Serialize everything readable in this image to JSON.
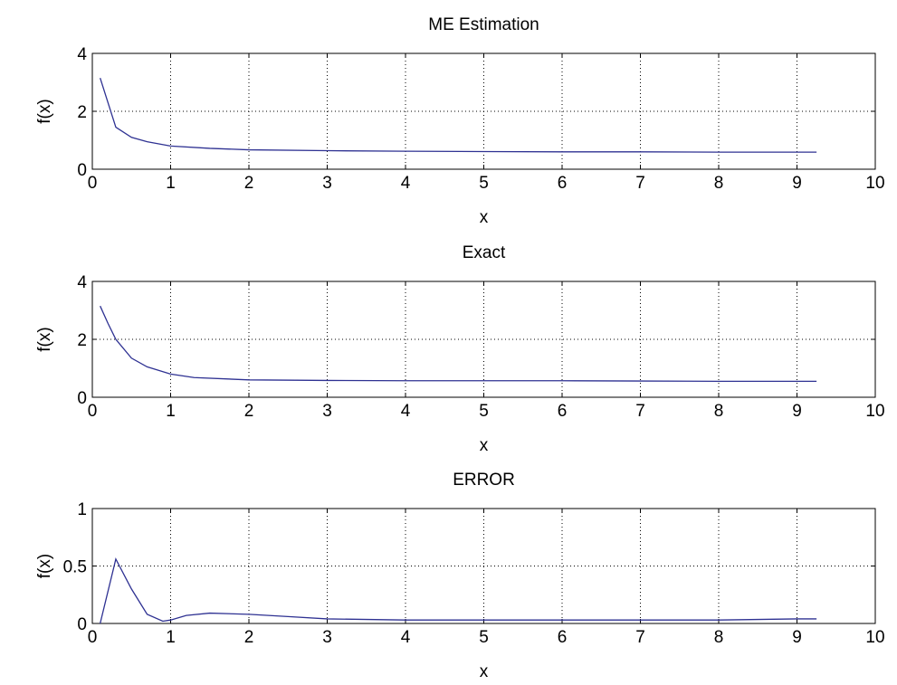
{
  "chart_data": [
    {
      "type": "line",
      "title": "ME Estimation",
      "xlabel": "x",
      "ylabel": "f(x)",
      "xlim": [
        0,
        10
      ],
      "ylim": [
        0,
        4
      ],
      "xticks": [
        0,
        1,
        2,
        3,
        4,
        5,
        6,
        7,
        8,
        9,
        10
      ],
      "yticks": [
        0,
        2,
        4
      ],
      "xtick_labels": [
        "0",
        "1",
        "2",
        "3",
        "4",
        "5",
        "6",
        "7",
        "8",
        "9",
        "10"
      ],
      "ytick_labels": [
        "0",
        "2",
        "4"
      ],
      "grid": true,
      "series": [
        {
          "color": "#2e3192",
          "x": [
            0.1,
            0.2,
            0.3,
            0.5,
            0.7,
            1.0,
            1.5,
            2.0,
            3.0,
            4.0,
            5.0,
            6.0,
            7.0,
            8.0,
            9.0,
            9.25
          ],
          "y": [
            3.15,
            2.3,
            1.45,
            1.1,
            0.95,
            0.8,
            0.72,
            0.67,
            0.64,
            0.62,
            0.61,
            0.6,
            0.6,
            0.59,
            0.59,
            0.59
          ]
        }
      ]
    },
    {
      "type": "line",
      "title": "Exact",
      "xlabel": "x",
      "ylabel": "f(x)",
      "xlim": [
        0,
        10
      ],
      "ylim": [
        0,
        4
      ],
      "xticks": [
        0,
        1,
        2,
        3,
        4,
        5,
        6,
        7,
        8,
        9,
        10
      ],
      "yticks": [
        0,
        2,
        4
      ],
      "xtick_labels": [
        "0",
        "1",
        "2",
        "3",
        "4",
        "5",
        "6",
        "7",
        "8",
        "9",
        "10"
      ],
      "ytick_labels": [
        "0",
        "2",
        "4"
      ],
      "grid": true,
      "series": [
        {
          "color": "#2e3192",
          "x": [
            0.1,
            0.2,
            0.3,
            0.5,
            0.7,
            1.0,
            1.3,
            2.0,
            3.0,
            4.0,
            5.0,
            6.0,
            7.0,
            8.0,
            9.0,
            9.25
          ],
          "y": [
            3.15,
            2.55,
            2.0,
            1.35,
            1.05,
            0.8,
            0.68,
            0.6,
            0.58,
            0.57,
            0.57,
            0.57,
            0.56,
            0.55,
            0.55,
            0.55
          ]
        }
      ]
    },
    {
      "type": "line",
      "title": "ERROR",
      "xlabel": "x",
      "ylabel": "f(x)",
      "xlim": [
        0,
        10
      ],
      "ylim": [
        0,
        1
      ],
      "xticks": [
        0,
        1,
        2,
        3,
        4,
        5,
        6,
        7,
        8,
        9,
        10
      ],
      "yticks": [
        0,
        0.5,
        1
      ],
      "xtick_labels": [
        "0",
        "1",
        "2",
        "3",
        "4",
        "5",
        "6",
        "7",
        "8",
        "9",
        "10"
      ],
      "ytick_labels": [
        "0",
        "0.5",
        "1"
      ],
      "grid": true,
      "series": [
        {
          "color": "#2e3192",
          "x": [
            0.1,
            0.3,
            0.5,
            0.7,
            0.9,
            1.0,
            1.2,
            1.5,
            2.0,
            2.5,
            3.0,
            4.0,
            5.0,
            6.0,
            7.0,
            8.0,
            9.0,
            9.25
          ],
          "y": [
            0.0,
            0.56,
            0.3,
            0.08,
            0.02,
            0.03,
            0.07,
            0.09,
            0.08,
            0.06,
            0.04,
            0.03,
            0.03,
            0.03,
            0.03,
            0.03,
            0.04,
            0.04
          ]
        }
      ]
    }
  ]
}
